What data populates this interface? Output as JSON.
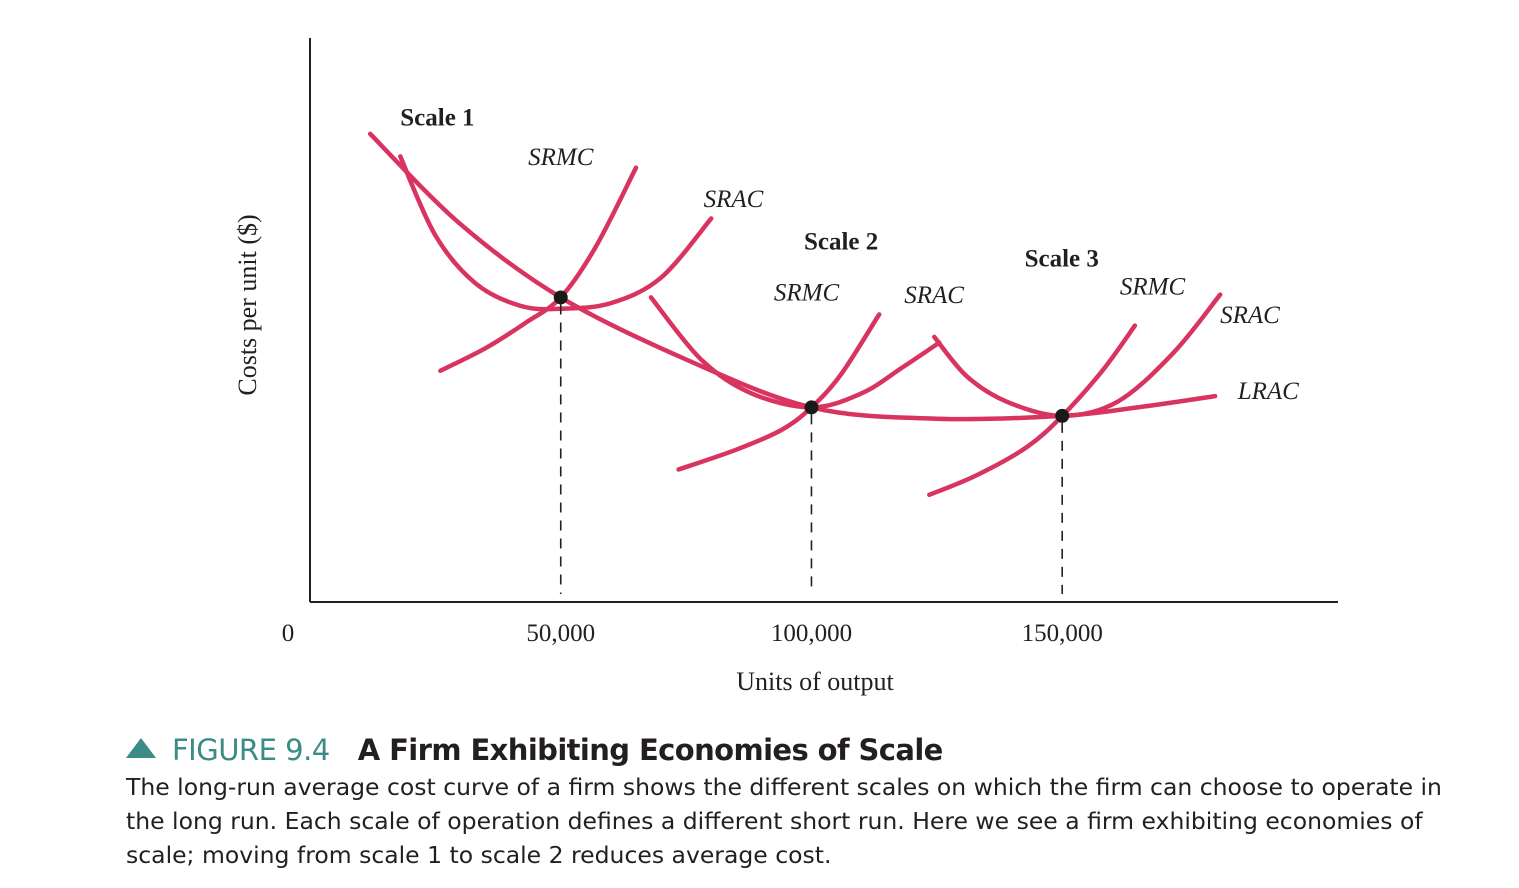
{
  "chart_data": {
    "type": "line",
    "xlabel": "Units of output",
    "ylabel": "Costs per unit ($)",
    "x_ticks": [
      {
        "value": 0,
        "label": "0"
      },
      {
        "value": 50000,
        "label": "50,000"
      },
      {
        "value": 100000,
        "label": "100,000"
      },
      {
        "value": 150000,
        "label": "150,000"
      }
    ],
    "xlim": [
      0,
      205000
    ],
    "ylim": [
      0,
      100
    ],
    "y_ticks_shown": false,
    "grid": false,
    "legend": "none",
    "curve_color": "#d8345f",
    "series": [
      {
        "name": "LRAC",
        "points": [
          [
            12000,
            83
          ],
          [
            30000,
            67
          ],
          [
            50000,
            54
          ],
          [
            75000,
            43
          ],
          [
            100000,
            34.5
          ],
          [
            125000,
            32.5
          ],
          [
            150000,
            33
          ],
          [
            165000,
            34.5
          ],
          [
            180500,
            36.5
          ]
        ]
      },
      {
        "name": "SRAC",
        "scale": "Scale 1",
        "points": [
          [
            18000,
            79
          ],
          [
            25000,
            65
          ],
          [
            33000,
            56.5
          ],
          [
            42000,
            52.5
          ],
          [
            50000,
            52
          ],
          [
            60000,
            53
          ],
          [
            70000,
            57.5
          ],
          [
            80000,
            68
          ]
        ]
      },
      {
        "name": "SRMC",
        "scale": "Scale 1",
        "points": [
          [
            26000,
            41
          ],
          [
            35000,
            45
          ],
          [
            43000,
            49.5
          ],
          [
            50000,
            54
          ],
          [
            57000,
            63
          ],
          [
            65000,
            77
          ]
        ]
      },
      {
        "name": "SRAC",
        "scale": "Scale 2",
        "points": [
          [
            68000,
            54
          ],
          [
            78000,
            43
          ],
          [
            88000,
            37
          ],
          [
            100000,
            34.5
          ],
          [
            110000,
            37
          ],
          [
            118000,
            41.5
          ],
          [
            125500,
            46
          ]
        ]
      },
      {
        "name": "SRMC",
        "scale": "Scale 2",
        "points": [
          [
            73500,
            23.5
          ],
          [
            85000,
            27
          ],
          [
            94000,
            30.5
          ],
          [
            100000,
            34.5
          ],
          [
            106000,
            40.5
          ],
          [
            113500,
            51
          ]
        ]
      },
      {
        "name": "SRAC",
        "scale": "Scale 3",
        "points": [
          [
            124500,
            47
          ],
          [
            131000,
            40
          ],
          [
            139000,
            35.5
          ],
          [
            150000,
            33
          ],
          [
            161000,
            35.5
          ],
          [
            172000,
            44
          ],
          [
            181500,
            54.5
          ]
        ]
      },
      {
        "name": "SRMC",
        "scale": "Scale 3",
        "points": [
          [
            123500,
            19
          ],
          [
            133000,
            22.5
          ],
          [
            143000,
            27.5
          ],
          [
            150000,
            33
          ],
          [
            158000,
            41
          ],
          [
            164500,
            49
          ]
        ]
      }
    ],
    "points": [
      {
        "name": "Scale 1",
        "x": 50000,
        "y": 54
      },
      {
        "name": "Scale 2",
        "x": 100000,
        "y": 34.5
      },
      {
        "name": "Scale 3",
        "x": 150000,
        "y": 33
      }
    ],
    "annotations": [
      {
        "text": "Scale 1",
        "x": 18000,
        "y": 84.5,
        "style": "bold"
      },
      {
        "text": "SRMC",
        "x": 43500,
        "y": 77.5,
        "style": "italic"
      },
      {
        "text": "SRAC",
        "x": 78500,
        "y": 70,
        "style": "italic"
      },
      {
        "text": "Scale 2",
        "x": 98500,
        "y": 62.5,
        "style": "bold"
      },
      {
        "text": "SRMC",
        "x": 92500,
        "y": 53.5,
        "style": "italic"
      },
      {
        "text": "SRAC",
        "x": 118500,
        "y": 53,
        "style": "italic"
      },
      {
        "text": "Scale 3",
        "x": 142500,
        "y": 59.5,
        "style": "bold"
      },
      {
        "text": "SRMC",
        "x": 161500,
        "y": 54.5,
        "style": "italic"
      },
      {
        "text": "SRAC",
        "x": 181500,
        "y": 49.5,
        "style": "italic"
      },
      {
        "text": "LRAC",
        "x": 185000,
        "y": 36,
        "style": "italic"
      }
    ]
  },
  "caption": {
    "figure_number": "FIGURE 9.4",
    "title": "A Firm Exhibiting Economies of Scale",
    "text": "The long-run average cost curve of a firm shows the different scales on which the firm can choose to operate in the long run. Each scale of operation defines a different short run. Here we see a firm exhibiting economies of scale; moving from scale 1 to scale 2 reduces average cost."
  }
}
